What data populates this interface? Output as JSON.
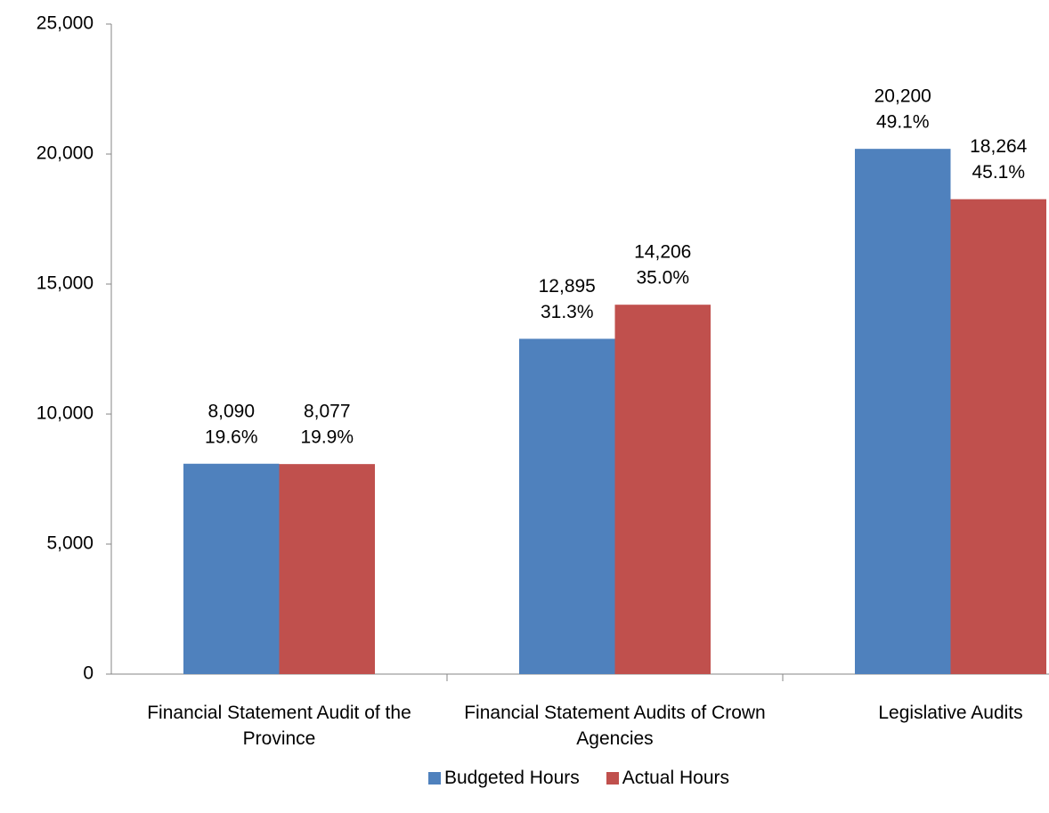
{
  "chart_data": {
    "type": "bar",
    "categories": [
      "Financial Statement Audit of the Province",
      "Financial Statement Audits of Crown Agencies",
      "Legislative Audits"
    ],
    "series": [
      {
        "name": "Budgeted Hours",
        "color": "#4f81bd",
        "values": [
          8090,
          12895,
          20200
        ],
        "value_labels": [
          "8,090",
          "12,895",
          "20,200"
        ],
        "percent_labels": [
          "19.6%",
          "31.3%",
          "49.1%"
        ]
      },
      {
        "name": "Actual Hours",
        "color": "#c0504d",
        "values": [
          8077,
          14206,
          18264
        ],
        "value_labels": [
          "8,077",
          "14,206",
          "18,264"
        ],
        "percent_labels": [
          "19.9%",
          "35.0%",
          "45.1%"
        ]
      }
    ],
    "ylim": [
      0,
      25000
    ],
    "yticks": [
      0,
      {
        "value": 5000,
        "label": "5,000"
      },
      {
        "value": 10000,
        "label": "10,000"
      },
      {
        "value": 15000,
        "label": "15,000"
      },
      {
        "value": 20000,
        "label": "20,000"
      },
      {
        "value": 25000,
        "label": "25,000"
      }
    ],
    "grid": false,
    "legend": "bottom"
  }
}
